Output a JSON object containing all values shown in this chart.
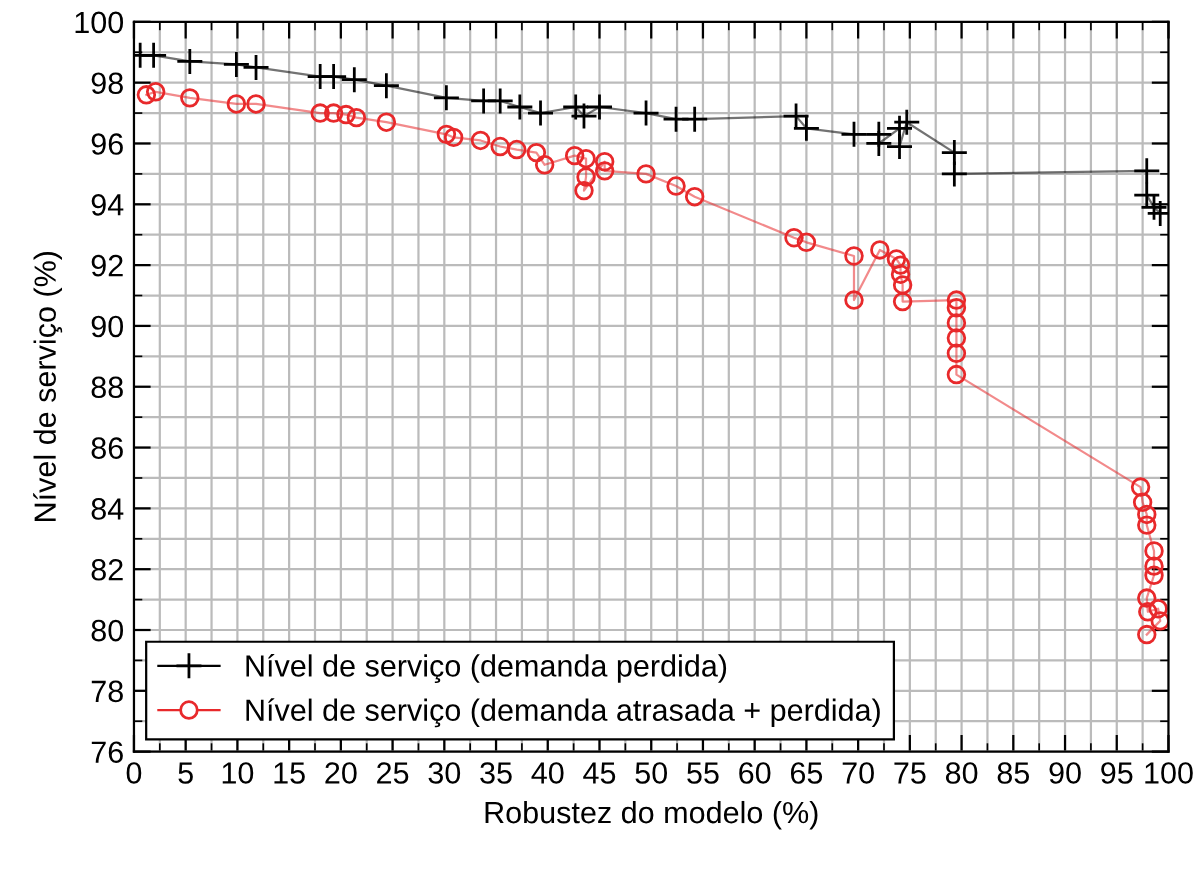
{
  "chart_data": {
    "type": "line",
    "xlabel": "Robustez do modelo (%)",
    "ylabel": "Nível de serviço (%)",
    "xlim": [
      0,
      100
    ],
    "xticks": [
      0,
      5,
      10,
      15,
      20,
      25,
      30,
      35,
      40,
      45,
      50,
      55,
      60,
      65,
      70,
      75,
      80,
      85,
      90,
      95,
      100
    ],
    "ylim": [
      76,
      100
    ],
    "yticks": [
      76,
      78,
      80,
      82,
      84,
      86,
      88,
      90,
      92,
      94,
      96,
      98,
      100
    ],
    "grid": true,
    "legend": "bottom left",
    "series": [
      {
        "name": "Nível de serviço (demanda perdida)",
        "color": "#000000",
        "marker": "cross",
        "x": [
          0.6,
          1.9,
          5.4,
          9.9,
          11.8,
          18,
          19.3,
          21.3,
          24.4,
          30.2,
          33.8,
          35.4,
          37.3,
          39.3,
          42.7,
          43.5,
          45,
          49.5,
          52.4,
          54.2,
          64,
          65,
          69.6,
          72,
          72,
          74,
          74,
          74.7,
          79.3,
          79.3,
          97.9,
          97.9,
          98.6,
          99.2
        ],
        "values": [
          98.9,
          98.9,
          98.7,
          98.6,
          98.5,
          98.2,
          98.2,
          98.1,
          97.9,
          97.5,
          97.4,
          97.4,
          97.2,
          97.0,
          97.2,
          96.9,
          97.2,
          97.0,
          96.8,
          96.8,
          96.9,
          96.5,
          96.3,
          96.3,
          96.0,
          96.5,
          95.9,
          96.7,
          95.7,
          95.0,
          95.1,
          94.3,
          93.9,
          93.7
        ]
      },
      {
        "name": "Nível de serviço (demanda atrasada + perdida)",
        "color": "#e8292b",
        "marker": "circle",
        "x": [
          1.2,
          2.1,
          5.4,
          9.9,
          11.8,
          18,
          19.3,
          20.5,
          21.5,
          24.4,
          30.2,
          30.9,
          33.5,
          35.4,
          37,
          38.9,
          39.7,
          42.6,
          43.7,
          43.7,
          43.5,
          45.5,
          45.5,
          49.5,
          52.4,
          54.2,
          63.8,
          65,
          69.6,
          69.6,
          72.1,
          73.7,
          74.1,
          74.1,
          74.3,
          74.3,
          79.5,
          79.5,
          79.5,
          79.5,
          79.5,
          79.5,
          97.3,
          97.5,
          97.9,
          97.9,
          98.6,
          98.6,
          98.6,
          97.9,
          98.0,
          99.0,
          99.2,
          97.9
        ],
        "values": [
          97.6,
          97.7,
          97.5,
          97.3,
          97.3,
          97.0,
          97.0,
          96.95,
          96.85,
          96.7,
          96.3,
          96.2,
          96.1,
          95.9,
          95.8,
          95.7,
          95.3,
          95.6,
          95.5,
          94.9,
          94.45,
          95.4,
          95.1,
          95.0,
          94.6,
          94.25,
          92.9,
          92.75,
          92.3,
          90.85,
          92.5,
          92.2,
          92.0,
          91.7,
          91.35,
          90.8,
          90.85,
          90.6,
          90.1,
          89.6,
          89.1,
          88.4,
          84.7,
          84.2,
          83.8,
          83.45,
          82.6,
          82.1,
          81.8,
          81.05,
          80.6,
          80.7,
          80.3,
          79.85
        ]
      }
    ]
  }
}
